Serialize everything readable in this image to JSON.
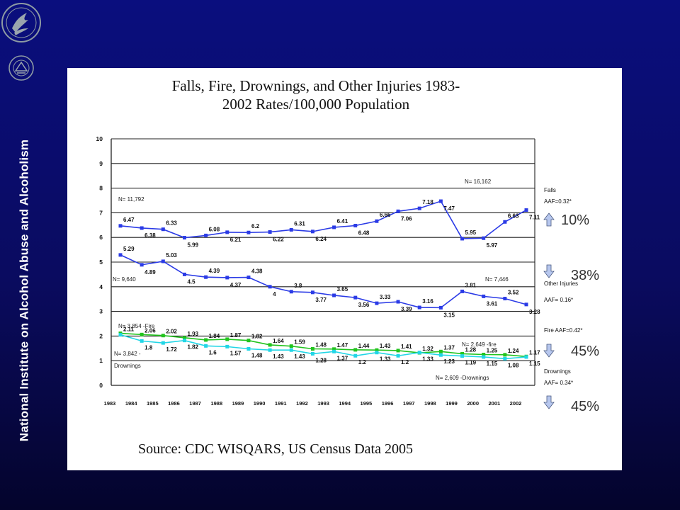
{
  "sidebar": {
    "vertical_title": "National Institute on Alcohol Abuse and Alcoholism",
    "logos": [
      "hhs-eagle-seal",
      "nih-seal"
    ]
  },
  "colors": {
    "slide_background": "#0a0a78",
    "panel": "#ffffff",
    "falls_other_line": "#2b3be6",
    "fire_line": "#22c41e",
    "drownings_line": "#22d6e6",
    "arrow": "#b7c7ee"
  },
  "chart_data": {
    "type": "line",
    "title": "Falls, Fire, Drownings, and Other Injuries 1983-\n2002 Rates/100,000 Population",
    "source": "Source: CDC WISQARS, US Census Data 2005",
    "xlabel": "",
    "ylabel": "",
    "ylim": [
      0,
      10
    ],
    "yticks": [
      "0",
      "1",
      "2",
      "3",
      "4",
      "5",
      "6",
      "7",
      "8",
      "9",
      "10"
    ],
    "x": [
      "1983",
      "1984",
      "1985",
      "1986",
      "1987",
      "1988",
      "1989",
      "1990",
      "1991",
      "1992",
      "1993",
      "1994",
      "1995",
      "1996",
      "1997",
      "1998",
      "1999",
      "2000",
      "2001",
      "2002"
    ],
    "grid": "horizontal",
    "series": [
      {
        "name": "Falls",
        "color": "#2b3be6",
        "values": [
          6.47,
          6.38,
          6.33,
          5.99,
          6.08,
          6.21,
          6.2,
          6.22,
          6.31,
          6.24,
          6.41,
          6.48,
          6.66,
          7.06,
          7.18,
          7.47,
          5.95,
          5.97,
          6.63,
          7.11
        ],
        "labels": [
          "6.47",
          "6.38",
          "6.33",
          "5.99",
          "6.08",
          "6.21",
          "6.2",
          "6.22",
          "6.31",
          "6.24",
          "6.41",
          "6.48",
          "6.66",
          "7.06",
          "7.18",
          "7.47",
          "5.95",
          "5.97",
          "6.63",
          "7.11"
        ]
      },
      {
        "name": "Other Injuries",
        "color": "#2b3be6",
        "values": [
          5.29,
          4.89,
          5.03,
          4.5,
          4.39,
          4.37,
          4.38,
          4.0,
          3.8,
          3.77,
          3.65,
          3.56,
          3.33,
          3.39,
          3.16,
          3.15,
          3.81,
          3.61,
          3.52,
          3.28
        ],
        "labels": [
          "5.29",
          "4.89",
          "5.03",
          "4.5",
          "4.39",
          "4.37",
          "4.38",
          "4",
          "3.8",
          "3.77",
          "3.65",
          "3.56",
          "3.33",
          "3.39",
          "3.16",
          "3.15",
          "3.81",
          "3.61",
          "3.52",
          "3.28"
        ]
      },
      {
        "name": "Fire",
        "color": "#22c41e",
        "values": [
          2.11,
          2.06,
          2.02,
          1.93,
          1.84,
          1.87,
          1.82,
          1.64,
          1.59,
          1.48,
          1.47,
          1.44,
          1.43,
          1.41,
          1.32,
          1.37,
          1.28,
          1.25,
          1.24,
          1.17
        ],
        "labels": [
          "2.11",
          "2.06",
          "2.02",
          "1.93",
          "1.84",
          "1.87",
          "1.82",
          "1.64",
          "1.59",
          "1.48",
          "1.47",
          "1.44",
          "1.43",
          "1.41",
          "1.32",
          "1.37",
          "1.28",
          "1.25",
          "1.24",
          "1.17"
        ]
      },
      {
        "name": "Drownings",
        "color": "#22d6e6",
        "values": [
          2.05,
          1.8,
          1.72,
          1.82,
          1.6,
          1.57,
          1.48,
          1.43,
          1.43,
          1.28,
          1.37,
          1.2,
          1.33,
          1.2,
          1.33,
          1.23,
          1.19,
          1.15,
          1.08,
          1.15
        ],
        "labels": [
          "",
          "1.8",
          "1.72",
          "1.82",
          "1.6",
          "1.57",
          "1.48",
          "1.43",
          "1.43",
          "1.28",
          "1.37",
          "1.2",
          "1.33",
          "1.2",
          "1.33",
          "1.23",
          "1.19",
          "1.15",
          "1.08",
          "1.15"
        ]
      }
    ],
    "annotations": {
      "falls_n_start": "N= 11,792",
      "falls_n_end": "N= 16,162",
      "other_n_start": "N= 9,640",
      "other_n_end": "N= 7,446",
      "fire_n_start": "N= 3,854 -Fire",
      "fire_n_end": "N= 2,649 -fire",
      "drown_n_start_1": "N= 3,842 -",
      "drown_n_start_2": "Drownings",
      "drown_n_end": "N= 2,609 -Drownings"
    },
    "legend": {
      "placement": "right",
      "blocks": [
        {
          "name": "Falls",
          "aaf": "AAF=0.32*",
          "direction": "up",
          "pct": "10%"
        },
        {
          "name": "Other Injuries",
          "aaf": "AAF= 0.16*",
          "direction": "down",
          "pct": "38%"
        },
        {
          "name": "Fire",
          "aaf": "AAF=0.42*",
          "direction": "down",
          "pct": "45%"
        },
        {
          "name": "Drownings",
          "aaf": "AAF= 0.34*",
          "direction": "down",
          "pct": "45%"
        }
      ]
    }
  }
}
